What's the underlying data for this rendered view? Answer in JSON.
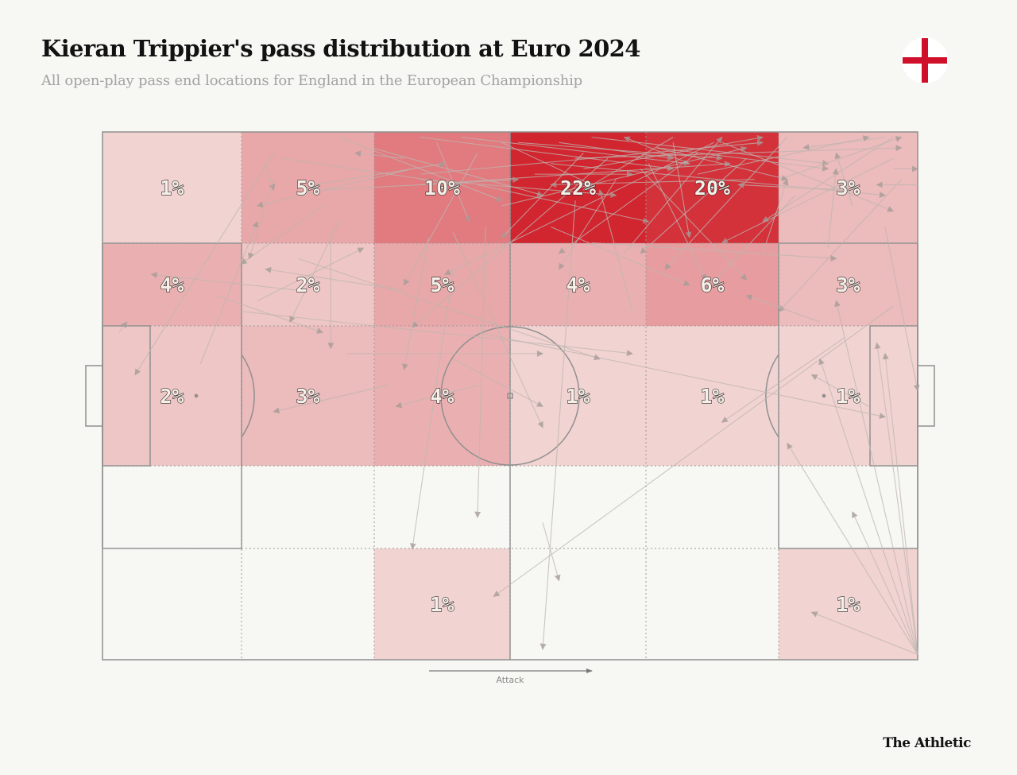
{
  "header": {
    "title": "Kieran Trippier's pass distribution at Euro 2024",
    "subtitle": "All open-play pass end locations for England in the European Championship"
  },
  "flag": {
    "icon": "england-flag-icon",
    "colors": {
      "background": "#ffffff",
      "cross": "#d0102a"
    }
  },
  "footer": {
    "brand": "The Athletic"
  },
  "attack_label": "Attack",
  "colors": {
    "heat_max": "#d1252f",
    "heat_min": "#f7f7f3",
    "pitch_lines": "#8a8a8a",
    "arrows": "#bdb5b0"
  },
  "chart_data": {
    "type": "heatmap",
    "title": "Kieran Trippier's pass distribution at Euro 2024",
    "subtitle": "All open-play pass end locations for England in the European Championship",
    "grid": {
      "columns": 6,
      "rows": 5
    },
    "attack_direction": "left-to-right",
    "zones": [
      {
        "row": 0,
        "col": 0,
        "value": 1,
        "label": "1%"
      },
      {
        "row": 0,
        "col": 1,
        "value": 5,
        "label": "5%"
      },
      {
        "row": 0,
        "col": 2,
        "value": 10,
        "label": "10%"
      },
      {
        "row": 0,
        "col": 3,
        "value": 22,
        "label": "22%"
      },
      {
        "row": 0,
        "col": 4,
        "value": 20,
        "label": "20%"
      },
      {
        "row": 0,
        "col": 5,
        "value": 3,
        "label": "3%"
      },
      {
        "row": 1,
        "col": 0,
        "value": 4,
        "label": "4%"
      },
      {
        "row": 1,
        "col": 1,
        "value": 2,
        "label": "2%"
      },
      {
        "row": 1,
        "col": 2,
        "value": 5,
        "label": "5%"
      },
      {
        "row": 1,
        "col": 3,
        "value": 4,
        "label": "4%"
      },
      {
        "row": 1,
        "col": 4,
        "value": 6,
        "label": "6%"
      },
      {
        "row": 1,
        "col": 5,
        "value": 3,
        "label": "3%"
      },
      {
        "row": 2,
        "col": 0,
        "value": 2,
        "label": "2%"
      },
      {
        "row": 2,
        "col": 1,
        "value": 3,
        "label": "3%"
      },
      {
        "row": 2,
        "col": 2,
        "value": 4,
        "label": "4%"
      },
      {
        "row": 2,
        "col": 3,
        "value": 1,
        "label": "1%"
      },
      {
        "row": 2,
        "col": 4,
        "value": 1,
        "label": "1%"
      },
      {
        "row": 2,
        "col": 5,
        "value": 1,
        "label": "1%"
      },
      {
        "row": 3,
        "col": 0,
        "value": 0,
        "label": ""
      },
      {
        "row": 3,
        "col": 1,
        "value": 0,
        "label": ""
      },
      {
        "row": 3,
        "col": 2,
        "value": 0,
        "label": ""
      },
      {
        "row": 3,
        "col": 3,
        "value": 0,
        "label": ""
      },
      {
        "row": 3,
        "col": 4,
        "value": 0,
        "label": ""
      },
      {
        "row": 3,
        "col": 5,
        "value": 0,
        "label": ""
      },
      {
        "row": 4,
        "col": 0,
        "value": 0,
        "label": ""
      },
      {
        "row": 4,
        "col": 1,
        "value": 0,
        "label": ""
      },
      {
        "row": 4,
        "col": 2,
        "value": 1,
        "label": "1%"
      },
      {
        "row": 4,
        "col": 3,
        "value": 0,
        "label": ""
      },
      {
        "row": 4,
        "col": 4,
        "value": 0,
        "label": ""
      },
      {
        "row": 4,
        "col": 5,
        "value": 1,
        "label": "1%"
      }
    ],
    "passes": [
      [
        21,
        4,
        4,
        46
      ],
      [
        56,
        2,
        70,
        5
      ],
      [
        62,
        5,
        38,
        37
      ],
      [
        38,
        7,
        19,
        14
      ],
      [
        44,
        1,
        72,
        6
      ],
      [
        60,
        1,
        89,
        6
      ],
      [
        70,
        1,
        59,
        11
      ],
      [
        68,
        3,
        89,
        7
      ],
      [
        96,
        1,
        86,
        3
      ],
      [
        97,
        5,
        76,
        21
      ],
      [
        39,
        1,
        70,
        7
      ],
      [
        17,
        34,
        65,
        42
      ],
      [
        84,
        1,
        69,
        26
      ],
      [
        97,
        1,
        81,
        17
      ],
      [
        73,
        8,
        94,
        1
      ],
      [
        70,
        2,
        72,
        20
      ],
      [
        24,
        30,
        6,
        27
      ],
      [
        76,
        2,
        97,
        15
      ],
      [
        59,
        7,
        81,
        1
      ],
      [
        39,
        10,
        77,
        6
      ],
      [
        14,
        31,
        27,
        38
      ],
      [
        83,
        9,
        98,
        1
      ],
      [
        73,
        4,
        56,
        23
      ],
      [
        58,
        5,
        98,
        3
      ],
      [
        66,
        7,
        79,
        28
      ],
      [
        51,
        2,
        76,
        5
      ],
      [
        49,
        2,
        60,
        10
      ],
      [
        55,
        6,
        96,
        12
      ],
      [
        33,
        3,
        54,
        12
      ],
      [
        20,
        6,
        21,
        11
      ],
      [
        46,
        38,
        96,
        54
      ],
      [
        46,
        4,
        37,
        29
      ],
      [
        37,
        5,
        31,
        4
      ],
      [
        30,
        42,
        54,
        42
      ],
      [
        91,
        39,
        76,
        55
      ],
      [
        94,
        52,
        87,
        46
      ],
      [
        68,
        3,
        84,
        9
      ],
      [
        39,
        9,
        63,
        12
      ],
      [
        41,
        2,
        45,
        17
      ],
      [
        22,
        5,
        44,
        10
      ],
      [
        59,
        4,
        49,
        20
      ],
      [
        75,
        2,
        42,
        27
      ],
      [
        63,
        9,
        56,
        26
      ],
      [
        80,
        9,
        55,
        10
      ],
      [
        27,
        14,
        17,
        25
      ],
      [
        24,
        24,
        61,
        43
      ],
      [
        72,
        6,
        64,
        1
      ],
      [
        64,
        23,
        76,
        1
      ],
      [
        27,
        11,
        51,
        9
      ],
      [
        98,
        9,
        83,
        34
      ],
      [
        46,
        10,
        67,
        17
      ],
      [
        21,
        9,
        18,
        24
      ],
      [
        92,
        14,
        90,
        4
      ],
      [
        29,
        1,
        49,
        13
      ],
      [
        53,
        8,
        65,
        8
      ],
      [
        97,
        33,
        48,
        88
      ],
      [
        39,
        8,
        81,
        2
      ],
      [
        40,
        20,
        37,
        45
      ],
      [
        96,
        18,
        100,
        49
      ],
      [
        49,
        14,
        79,
        3
      ],
      [
        43,
        43,
        54,
        52
      ],
      [
        100,
        99,
        87,
        91
      ],
      [
        100,
        99,
        84,
        59
      ],
      [
        100,
        99,
        90,
        32
      ],
      [
        100,
        99,
        96,
        42
      ],
      [
        100,
        99,
        92,
        72
      ],
      [
        100,
        99,
        88,
        43
      ],
      [
        100,
        99,
        95,
        40
      ],
      [
        43,
        26,
        38,
        79
      ],
      [
        47,
        18,
        46,
        73
      ],
      [
        54,
        74,
        56,
        85
      ],
      [
        35,
        48,
        21,
        53
      ],
      [
        29,
        17,
        23,
        36
      ],
      [
        55,
        18,
        72,
        29
      ],
      [
        58,
        13,
        54,
        98
      ],
      [
        46,
        48,
        36,
        52
      ],
      [
        65,
        34,
        61,
        11
      ],
      [
        28,
        19,
        28,
        41
      ],
      [
        12,
        44,
        19,
        17
      ],
      [
        43,
        19,
        54,
        56
      ],
      [
        89,
        22,
        90,
        7
      ],
      [
        91,
        11,
        78,
        10
      ],
      [
        81,
        23,
        84,
        9
      ],
      [
        19,
        32,
        32,
        22
      ],
      [
        60,
        21,
        90,
        24
      ],
      [
        88,
        36,
        79,
        31
      ],
      [
        97,
        7,
        100,
        7
      ],
      [
        85,
        12,
        74,
        30
      ],
      [
        79,
        5,
        66,
        23
      ],
      [
        100,
        10,
        95,
        10
      ],
      [
        67,
        6,
        74,
        28
      ],
      [
        37,
        30,
        20,
        26
      ],
      [
        2,
        38,
        3,
        36
      ],
      [
        26,
        10,
        42,
        6
      ]
    ]
  }
}
